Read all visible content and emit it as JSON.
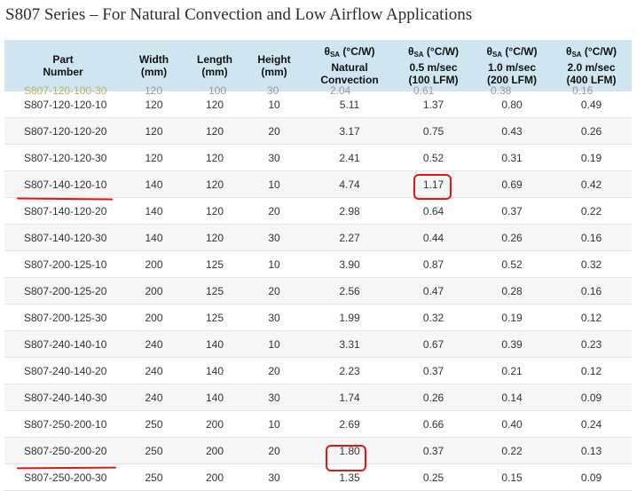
{
  "title": "S807 Series – For Natural Convection and Low Airflow Applications",
  "headers": [
    {
      "main": "Part",
      "sub": "Number"
    },
    {
      "main": "Width",
      "sub": "(mm)"
    },
    {
      "main": "Length",
      "sub": "(mm)"
    },
    {
      "main": "Height",
      "sub": "(mm)"
    },
    {
      "theta": "θ",
      "sa": "SA",
      "unit": "(°C/W)",
      "l2": "Natural",
      "l3": "Convection"
    },
    {
      "theta": "θ",
      "sa": "SA",
      "unit": "(°C/W)",
      "l2": "0.5 m/sec",
      "l3": "(100 LFM)"
    },
    {
      "theta": "θ",
      "sa": "SA",
      "unit": "(°C/W)",
      "l2": "1.0 m/sec",
      "l3": "(200 LFM)"
    },
    {
      "theta": "θ",
      "sa": "SA",
      "unit": "(°C/W)",
      "l2": "2.0 m/sec",
      "l3": "(400 LFM)"
    }
  ],
  "cut_row": [
    "S807-120-100-30",
    "120",
    "100",
    "30",
    "2.04",
    "0.61",
    "0.38",
    "0.16"
  ],
  "rows": [
    [
      "S807-120-120-10",
      "120",
      "120",
      "10",
      "5.11",
      "1.37",
      "0.80",
      "0.49"
    ],
    [
      "S807-120-120-20",
      "120",
      "120",
      "20",
      "3.17",
      "0.75",
      "0.43",
      "0.26"
    ],
    [
      "S807-120-120-30",
      "120",
      "120",
      "30",
      "2.41",
      "0.52",
      "0.31",
      "0.19"
    ],
    [
      "S807-140-120-10",
      "140",
      "120",
      "10",
      "4.74",
      "1.17",
      "0.69",
      "0.42"
    ],
    [
      "S807-140-120-20",
      "140",
      "120",
      "20",
      "2.98",
      "0.64",
      "0.37",
      "0.22"
    ],
    [
      "S807-140-120-30",
      "140",
      "120",
      "30",
      "2.27",
      "0.44",
      "0.26",
      "0.16"
    ],
    [
      "S807-200-125-10",
      "200",
      "125",
      "10",
      "3.90",
      "0.87",
      "0.52",
      "0.32"
    ],
    [
      "S807-200-125-20",
      "200",
      "125",
      "20",
      "2.56",
      "0.47",
      "0.28",
      "0.16"
    ],
    [
      "S807-200-125-30",
      "200",
      "125",
      "30",
      "1.99",
      "0.32",
      "0.19",
      "0.12"
    ],
    [
      "S807-240-140-10",
      "240",
      "140",
      "10",
      "3.31",
      "0.67",
      "0.39",
      "0.23"
    ],
    [
      "S807-240-140-20",
      "240",
      "140",
      "20",
      "2.23",
      "0.37",
      "0.21",
      "0.12"
    ],
    [
      "S807-240-140-30",
      "240",
      "140",
      "30",
      "1.74",
      "0.26",
      "0.14",
      "0.09"
    ],
    [
      "S807-250-200-10",
      "250",
      "200",
      "10",
      "2.69",
      "0.66",
      "0.40",
      "0.24"
    ],
    [
      "S807-250-200-20",
      "250",
      "200",
      "20",
      "1.80",
      "0.37",
      "0.22",
      "0.13"
    ],
    [
      "S807-250-200-30",
      "250",
      "200",
      "30",
      "1.35",
      "0.25",
      "0.15",
      "0.09"
    ]
  ],
  "annotation_color": "#e01515"
}
